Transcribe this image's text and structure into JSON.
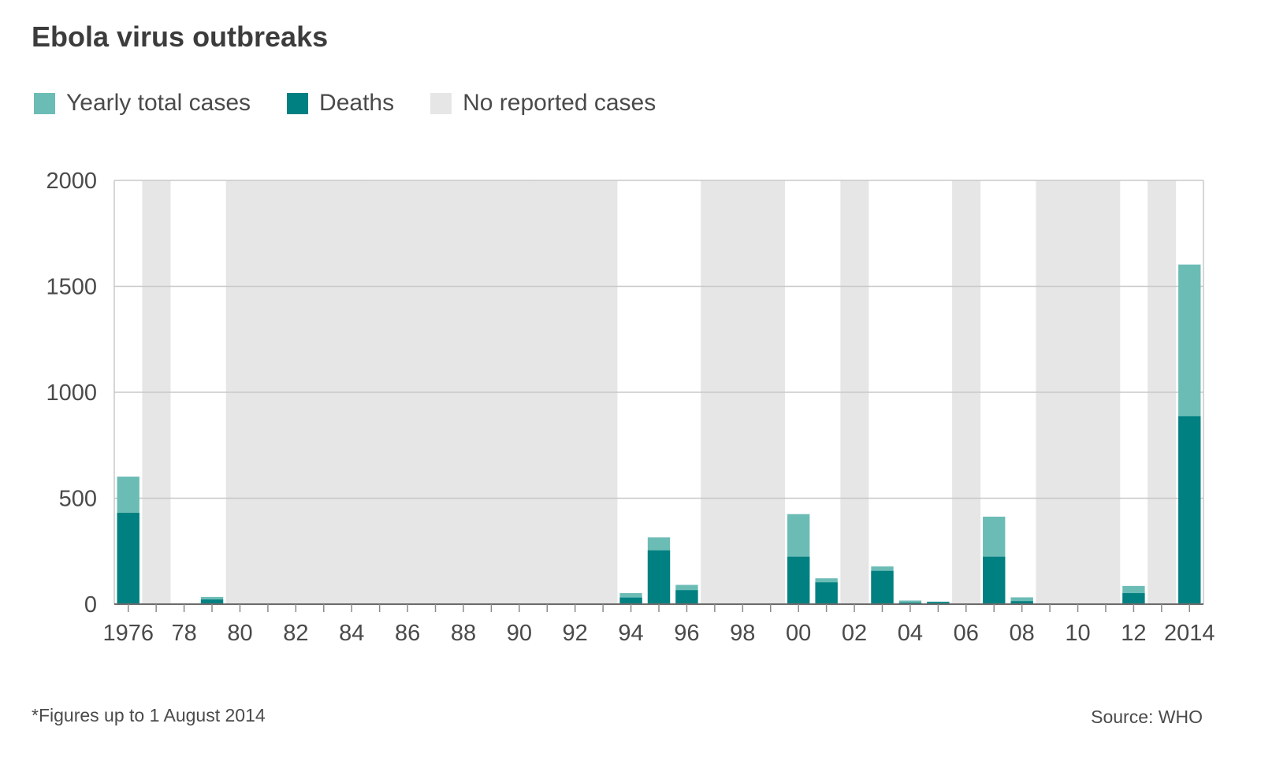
{
  "title": "Ebola virus outbreaks",
  "legend": [
    {
      "label": "Yearly total cases",
      "color": "#6cbcb6"
    },
    {
      "label": "Deaths",
      "color": "#008081"
    },
    {
      "label": "No reported cases",
      "color": "#e6e6e6"
    }
  ],
  "footnote": "*Figures up to 1 August 2014",
  "source": "Source: WHO",
  "chart_data": {
    "type": "bar",
    "stacked": true,
    "x_range": [
      1976,
      2014
    ],
    "ylim": [
      0,
      2000
    ],
    "yticks": [
      0,
      500,
      1000,
      1500,
      2000
    ],
    "grid": true,
    "legend_position": "top-left",
    "xtick_labels": [
      {
        "year": 1976,
        "label": "1976"
      },
      {
        "year": 1978,
        "label": "78"
      },
      {
        "year": 1980,
        "label": "80"
      },
      {
        "year": 1982,
        "label": "82"
      },
      {
        "year": 1984,
        "label": "84"
      },
      {
        "year": 1986,
        "label": "86"
      },
      {
        "year": 1988,
        "label": "88"
      },
      {
        "year": 1990,
        "label": "90"
      },
      {
        "year": 1992,
        "label": "92"
      },
      {
        "year": 1994,
        "label": "94"
      },
      {
        "year": 1996,
        "label": "96"
      },
      {
        "year": 1998,
        "label": "98"
      },
      {
        "year": 2000,
        "label": "00"
      },
      {
        "year": 2002,
        "label": "02"
      },
      {
        "year": 2004,
        "label": "04"
      },
      {
        "year": 2006,
        "label": "06"
      },
      {
        "year": 2008,
        "label": "08"
      },
      {
        "year": 2010,
        "label": "10"
      },
      {
        "year": 2012,
        "label": "12"
      },
      {
        "year": 2014,
        "label": "2014"
      }
    ],
    "bars": [
      {
        "year": 1976,
        "cases": 602,
        "deaths": 431
      },
      {
        "year": 1979,
        "cases": 34,
        "deaths": 22
      },
      {
        "year": 1994,
        "cases": 52,
        "deaths": 31
      },
      {
        "year": 1995,
        "cases": 315,
        "deaths": 254
      },
      {
        "year": 1996,
        "cases": 91,
        "deaths": 66
      },
      {
        "year": 2000,
        "cases": 425,
        "deaths": 224
      },
      {
        "year": 2001,
        "cases": 122,
        "deaths": 103
      },
      {
        "year": 2003,
        "cases": 178,
        "deaths": 157
      },
      {
        "year": 2004,
        "cases": 17,
        "deaths": 7
      },
      {
        "year": 2005,
        "cases": 12,
        "deaths": 10
      },
      {
        "year": 2007,
        "cases": 413,
        "deaths": 224
      },
      {
        "year": 2008,
        "cases": 32,
        "deaths": 14
      },
      {
        "year": 2012,
        "cases": 86,
        "deaths": 52
      },
      {
        "year": 2014,
        "cases": 1603,
        "deaths": 887
      }
    ],
    "no_reported_years": [
      1977,
      1980,
      1981,
      1982,
      1983,
      1984,
      1985,
      1986,
      1987,
      1988,
      1989,
      1990,
      1991,
      1992,
      1993,
      1997,
      1998,
      1999,
      2002,
      2006,
      2009,
      2010,
      2011,
      2013
    ]
  }
}
